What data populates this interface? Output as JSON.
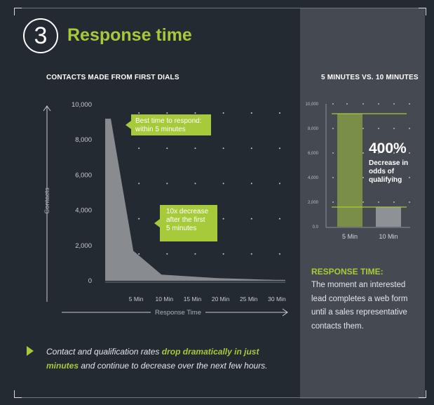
{
  "step_number": "3",
  "section_title": "Response time",
  "colors": {
    "background": "#232a31",
    "panel": "#454a52",
    "accent": "#a6ca3a",
    "area_fill": "#8e9196",
    "bar_fill": "#7a8e47",
    "text": "#ffffff"
  },
  "chart_data": [
    {
      "type": "area",
      "title": "CONTACTS MADE FROM FIRST DIALS",
      "xlabel": "Response Time",
      "ylabel": "Contacts",
      "categories": [
        "5 Min",
        "10 Min",
        "15 Min",
        "20 Min",
        "25 Min",
        "30 Min"
      ],
      "y_ticks": [
        "10,000",
        "8,000",
        "6,000",
        "4,000",
        "2,000",
        "0"
      ],
      "ylim": [
        0,
        10000
      ],
      "x": [
        0,
        1,
        5,
        10,
        15,
        20,
        25,
        30,
        32
      ],
      "values": [
        9200,
        9200,
        1700,
        350,
        250,
        150,
        100,
        50,
        50
      ],
      "grid": "dotted",
      "annotations": [
        {
          "id": "best-time",
          "text_lines": [
            "Best time to respond:",
            "within 5 minutes"
          ]
        },
        {
          "id": "decrease",
          "text_lines": [
            "10x decrease",
            "after the first",
            "5 minutes"
          ]
        }
      ]
    },
    {
      "type": "bar",
      "title": "5 MINUTES VS. 10 MINUTES",
      "categories": [
        "5 Min",
        "10 Min"
      ],
      "values": [
        9200,
        1600
      ],
      "y_ticks": [
        "10,000",
        "8,000",
        "6,000",
        "4,000",
        "2,000",
        "0.0"
      ],
      "ylim": [
        0,
        10000
      ],
      "grid": "dotted",
      "annotation": {
        "value": "400%",
        "text": "Decrease in odds of qualifying"
      }
    }
  ],
  "definition": {
    "heading": "RESPONSE TIME:",
    "text": "The moment an interested lead completes a web form until a sales representative contacts them."
  },
  "takeaway": {
    "part1": "Contact and qualification rates ",
    "highlight": "drop dramatically in just minutes",
    "part2": " and continue to decrease over the next few hours."
  }
}
